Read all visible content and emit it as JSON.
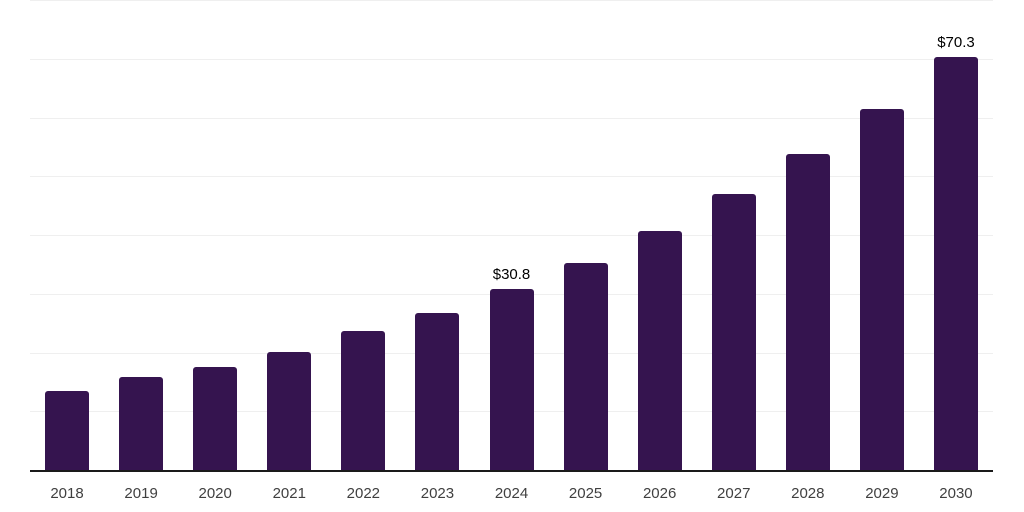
{
  "chart_data": {
    "type": "bar",
    "title": "",
    "xlabel": "",
    "ylabel": "",
    "categories": [
      "2018",
      "2019",
      "2020",
      "2021",
      "2022",
      "2023",
      "2024",
      "2025",
      "2026",
      "2027",
      "2028",
      "2029",
      "2030"
    ],
    "values": [
      13.4,
      15.8,
      17.6,
      20.0,
      23.7,
      26.8,
      30.8,
      35.2,
      40.7,
      47.0,
      53.8,
      61.4,
      70.3
    ],
    "data_labels": {
      "2024": "$30.8",
      "2030": "$70.3"
    },
    "ylim": [
      0,
      80
    ],
    "gridline_step": 10,
    "grid": true,
    "y_tick_labels_visible": false,
    "legend": false,
    "colors": {
      "bar": "#35144F",
      "data_label": "#000000",
      "x_tick_label": "#404040",
      "gridline": "#efefef",
      "axis_line": "#1a1a1a",
      "background": "#ffffff"
    }
  }
}
